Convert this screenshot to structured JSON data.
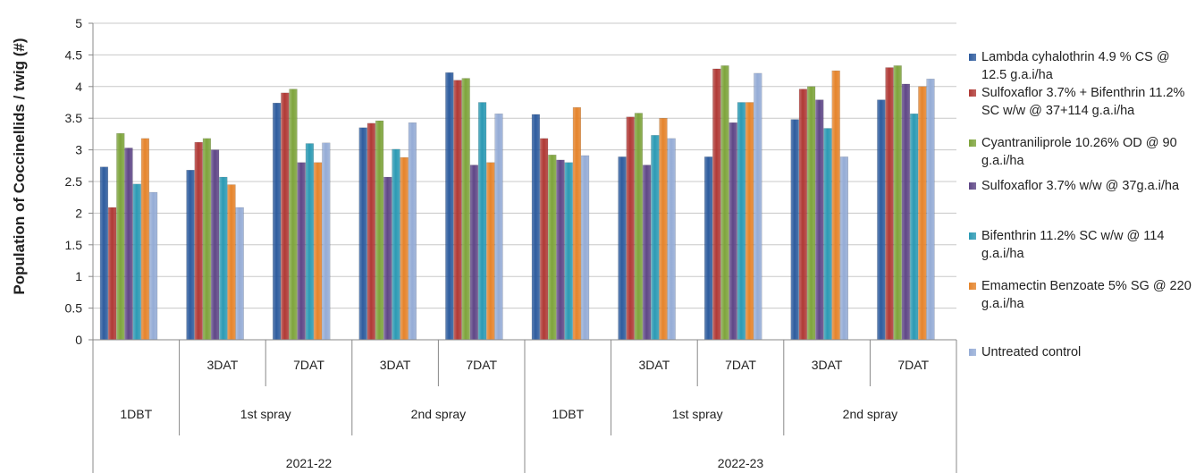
{
  "chart_data": {
    "type": "bar",
    "ylabel": "Population of Coccinellids / twig (#)",
    "ylim": [
      0,
      5
    ],
    "yticks": [
      "0",
      "0.5",
      "1",
      "1.5",
      "2",
      "2.5",
      "3",
      "3.5",
      "4",
      "4.5",
      "5"
    ],
    "grid": true,
    "legend_position": "right",
    "x_levels": {
      "timing": [
        "",
        "3DAT",
        "7DAT",
        "3DAT",
        "7DAT",
        "",
        "3DAT",
        "7DAT",
        "3DAT",
        "7DAT"
      ],
      "spray": [
        "1DBT",
        "1st spray",
        "2nd spray",
        "1DBT",
        "1st spray",
        "2nd spray"
      ],
      "season": [
        "2021-22",
        "2022-23"
      ]
    },
    "series": [
      {
        "name": "Lambda cyhalothrin 4.9 % CS @ 12.5 g.a.i/ha",
        "color": "#2e5c9e",
        "values": [
          2.73,
          2.68,
          3.74,
          3.35,
          4.22,
          3.56,
          2.89,
          2.89,
          3.48,
          3.79
        ]
      },
      {
        "name": "Sulfoxaflor 3.7% + Bifenthrin 11.2% SC w/w @ 37+114 g.a.i/ha",
        "color": "#b03a36",
        "values": [
          2.09,
          3.12,
          3.9,
          3.42,
          4.1,
          3.18,
          3.52,
          4.28,
          3.96,
          4.3
        ]
      },
      {
        "name": "Cyantraniliprole 10.26% OD @ 90 g.a.i/ha",
        "color": "#7ea43c",
        "values": [
          3.26,
          3.18,
          3.96,
          3.46,
          4.13,
          2.92,
          3.58,
          4.33,
          4.0,
          4.33
        ]
      },
      {
        "name": "Sulfoxaflor 3.7% w/w @ 37g.a.i/ha",
        "color": "#5f4787",
        "values": [
          3.03,
          3.0,
          2.8,
          2.57,
          2.76,
          2.84,
          2.76,
          3.43,
          3.79,
          4.04
        ]
      },
      {
        "name": "Bifenthrin 11.2% SC w/w @ 114 g.a.i/ha",
        "color": "#2c9ab4",
        "values": [
          2.46,
          2.57,
          3.1,
          3.01,
          3.75,
          2.8,
          3.23,
          3.75,
          3.34,
          3.57
        ]
      },
      {
        "name": "Emamectin Benzoate 5% SG @ 220 g.a.i/ha",
        "color": "#e5842c",
        "values": [
          3.18,
          2.45,
          2.8,
          2.88,
          2.8,
          3.67,
          3.5,
          3.75,
          4.25,
          4.0
        ]
      },
      {
        "name": "Untreated control",
        "color": "#95acd6",
        "values": [
          2.33,
          2.09,
          3.11,
          3.43,
          3.57,
          2.91,
          3.18,
          4.21,
          2.89,
          4.12
        ]
      }
    ]
  }
}
